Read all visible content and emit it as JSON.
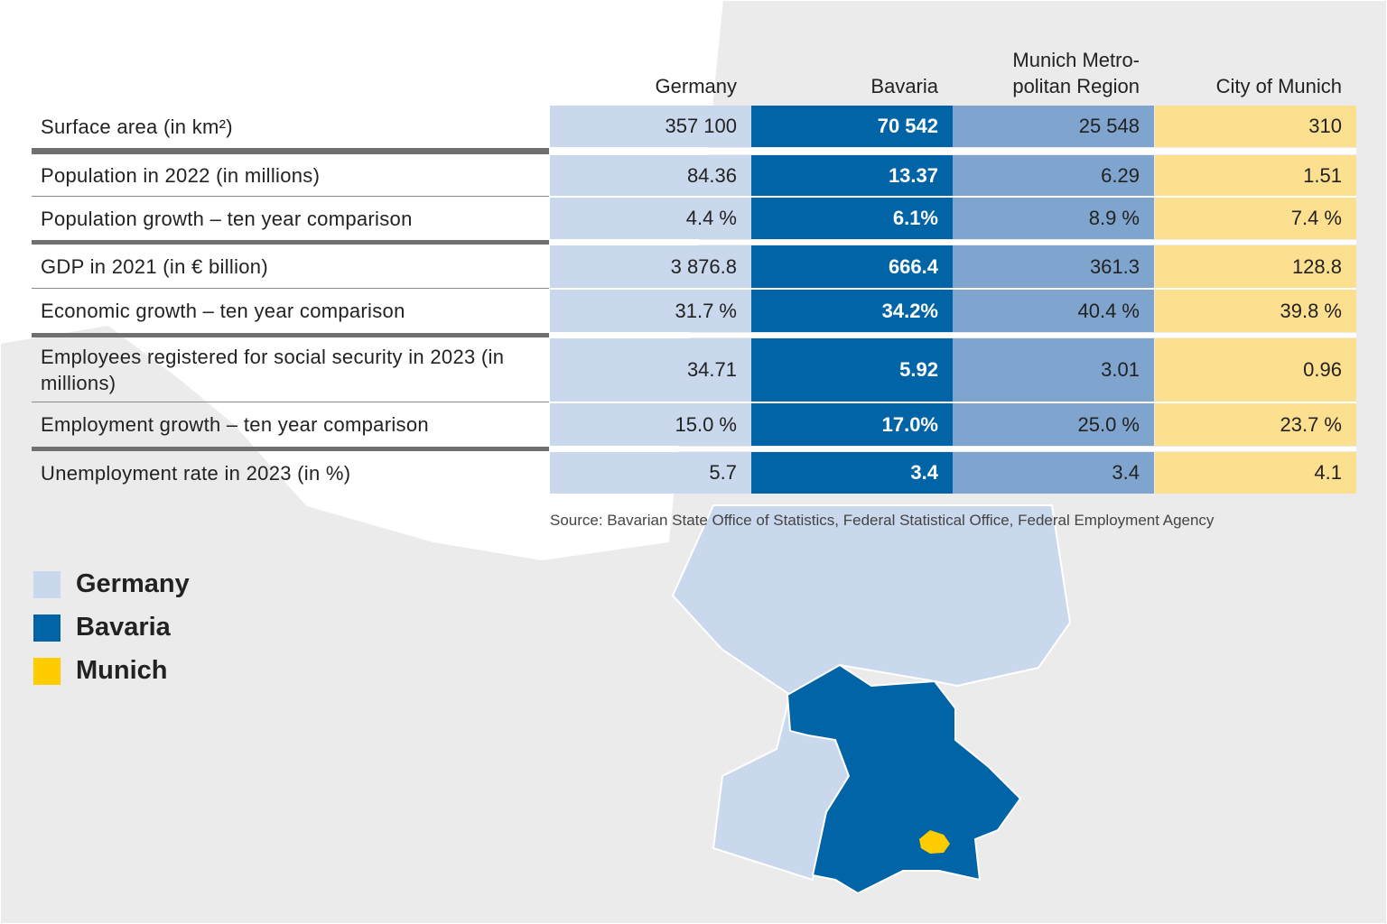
{
  "chart_data": {
    "type": "table",
    "columns": [
      "Germany",
      "Bavaria",
      "Munich Metro-\npolitan Region",
      "City of Munich"
    ],
    "column_colors": [
      "#c9d8ec",
      "#0064a7",
      "#7fa5cf",
      "#fde08f"
    ],
    "rows": [
      {
        "label": "Surface area (in km²)",
        "values": [
          "357 100",
          "70 542",
          "25 548",
          "310"
        ]
      },
      {
        "label": "Population in 2022 (in millions)",
        "values": [
          "84.36",
          "13.37",
          "6.29",
          "1.51"
        ]
      },
      {
        "label": "Population growth – ten year comparison",
        "values": [
          "4.4 %",
          "6.1%",
          "8.9 %",
          "7.4 %"
        ]
      },
      {
        "label": "GDP in 2021 (in € billion)",
        "values": [
          "3 876.8",
          "666.4",
          "361.3",
          "128.8"
        ]
      },
      {
        "label": "Economic growth – ten year comparison",
        "values": [
          "31.7 %",
          "34.2%",
          "40.4 %",
          "39.8 %"
        ]
      },
      {
        "label": "Employees registered for social security in 2023 (in millions)",
        "values": [
          "34.71",
          "5.92",
          "3.01",
          "0.96"
        ]
      },
      {
        "label": "Employment growth – ten year comparison",
        "values": [
          "15.0 %",
          "17.0%",
          "25.0 %",
          "23.7 %"
        ]
      },
      {
        "label": "Unemployment rate in 2023 (in %)",
        "values": [
          "5.7",
          "3.4",
          "3.4",
          "4.1"
        ]
      }
    ],
    "source": "Source: Bavarian State Office of Statistics, Federal Statistical Office, Federal Employment Agency"
  },
  "legend": [
    {
      "label": "Germany",
      "color": "#c9d8ec"
    },
    {
      "label": "Bavaria",
      "color": "#0064a7"
    },
    {
      "label": "Munich",
      "color": "#ffcc00"
    }
  ],
  "map_colors": {
    "background_land": "#e8e8e8",
    "germany": "#c9d8ec",
    "bavaria": "#0064a7",
    "munich": "#ffcc00"
  }
}
